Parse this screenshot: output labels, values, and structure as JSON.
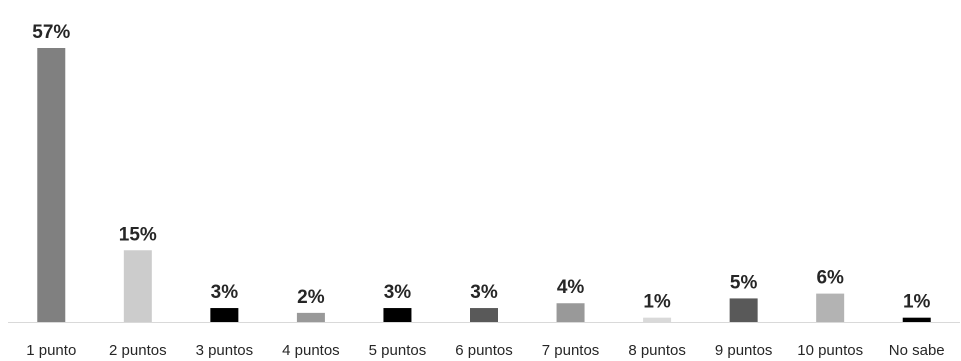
{
  "chart_data": {
    "type": "bar",
    "categories": [
      "1 punto",
      "2 puntos",
      "3 puntos",
      "4 puntos",
      "5 puntos",
      "6 puntos",
      "7 puntos",
      "8 puntos",
      "9 puntos",
      "10 puntos",
      "No sabe"
    ],
    "values": [
      57,
      15,
      3,
      2,
      3,
      3,
      4,
      1,
      5,
      6,
      1
    ],
    "value_labels": [
      "57%",
      "15%",
      "3%",
      "2%",
      "3%",
      "3%",
      "4%",
      "1%",
      "5%",
      "6%",
      "1%"
    ],
    "bar_colors": [
      "#808080",
      "#cccccc",
      "#000000",
      "#999999",
      "#000000",
      "#595959",
      "#999999",
      "#d9d9d9",
      "#595959",
      "#b3b3b3",
      "#000000"
    ],
    "axis_color": "#d9d9d9",
    "text_color": "#262626",
    "title": "",
    "xlabel": "",
    "ylabel": "",
    "ylim": [
      0,
      57
    ],
    "grid": false,
    "legend": "none"
  }
}
